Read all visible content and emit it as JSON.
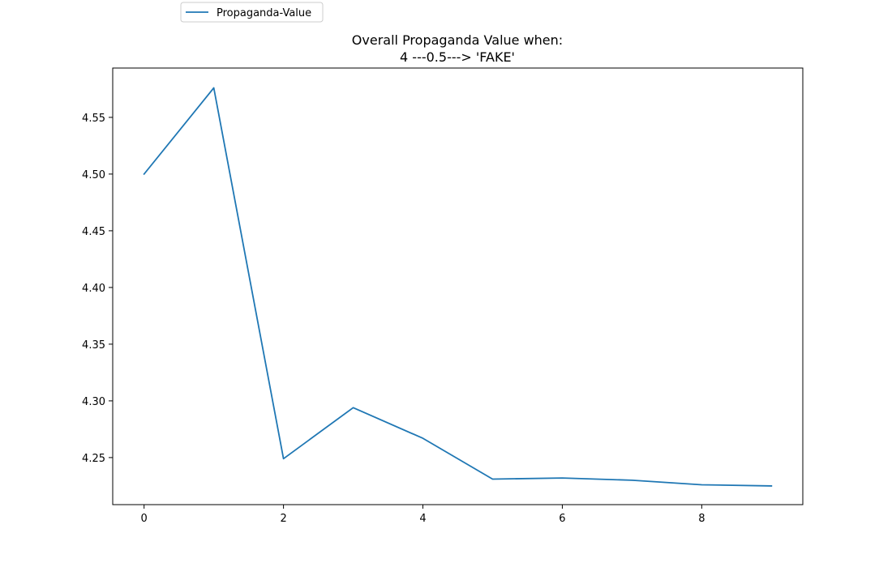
{
  "chart_data": {
    "type": "line",
    "title": "Overall Propaganda Value when:",
    "subtitle": "4 ---0.5---> 'FAKE'",
    "xlabel": "",
    "ylabel": "",
    "x": [
      0,
      1,
      2,
      3,
      4,
      5,
      6,
      7,
      8,
      9
    ],
    "series": [
      {
        "name": "Propaganda-Value",
        "color": "#1f77b4",
        "values": [
          4.5,
          4.576,
          4.249,
          4.294,
          4.267,
          4.231,
          4.232,
          4.23,
          4.226,
          4.225
        ]
      }
    ],
    "xlim": [
      -0.45,
      9.45
    ],
    "ylim": [
      4.2085,
      4.5935
    ],
    "xticks": [
      "0",
      "2",
      "4",
      "6",
      "8"
    ],
    "yticks": [
      "4.25",
      "4.30",
      "4.35",
      "4.40",
      "4.45",
      "4.50",
      "4.55"
    ],
    "grid": false,
    "legend_position": "top-left, above axes"
  }
}
